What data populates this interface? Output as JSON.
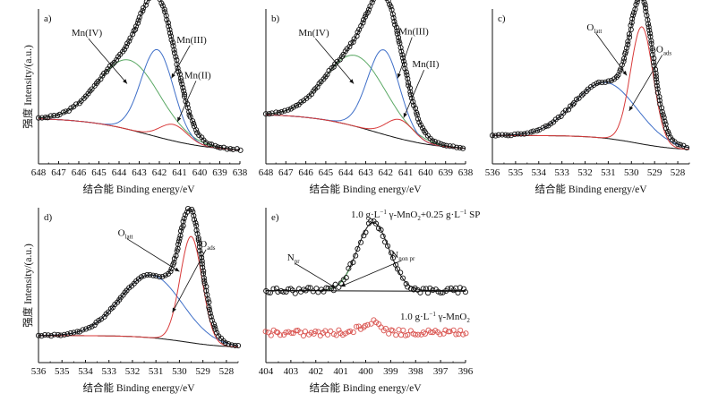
{
  "figure": {
    "y_axis_title": "强度 Intensity/(a.u.)",
    "x_axis_title": "结合能 Binding energy/eV"
  },
  "colors": {
    "data_markers": "#111111",
    "fit_envelope": "#111111",
    "background": "#111111",
    "mn4": "#5aa864",
    "mn3": "#3f6fc8",
    "mn2": "#d83a3a",
    "o_latt": "#d83a3a",
    "o_ads": "#3f6fc8",
    "sample_mno2": "#d9534f"
  },
  "chart_data": [
    {
      "id": "a",
      "panel_label": "a)",
      "type": "line",
      "xlabel": "结合能 Binding energy/eV",
      "ylabel": "强度 Intensity/(a.u.)",
      "xlim": [
        648,
        638
      ],
      "xticks": [
        "648",
        "647",
        "646",
        "645",
        "644",
        "643",
        "642",
        "641",
        "640",
        "639",
        "638"
      ],
      "ylim": [
        0,
        1
      ],
      "baseline": {
        "start": 0.27,
        "end": 0.02,
        "center": 642.5,
        "width": 1.6
      },
      "components": [
        {
          "name": "Mn(IV)",
          "color_key": "mn4",
          "center": 643.5,
          "fwhm": 3.6,
          "height": 0.51
        },
        {
          "name": "Mn(III)",
          "color_key": "mn3",
          "center": 642.1,
          "fwhm": 1.9,
          "height": 0.64
        },
        {
          "name": "Mn(II)",
          "color_key": "mn2",
          "center": 641.3,
          "fwhm": 1.6,
          "height": 0.12
        }
      ],
      "annotations": [
        {
          "text": "Mn(IV)",
          "x": 645.6,
          "y": 0.87,
          "arrow_to": [
            643.6,
            0.52
          ]
        },
        {
          "text": "Mn(III)",
          "x": 640.4,
          "y": 0.82,
          "arrow_to": [
            641.4,
            0.56
          ]
        },
        {
          "text": "Mn(II)",
          "x": 640.1,
          "y": 0.56,
          "arrow_to": [
            641.1,
            0.24
          ]
        }
      ]
    },
    {
      "id": "b",
      "panel_label": "b)",
      "type": "line",
      "xlabel": "结合能 Binding energy/eV",
      "ylabel": "",
      "xlim": [
        648,
        638
      ],
      "xticks": [
        "648",
        "647",
        "646",
        "645",
        "644",
        "643",
        "642",
        "641",
        "640",
        "639",
        "638"
      ],
      "ylim": [
        0,
        1
      ],
      "baseline": {
        "start": 0.3,
        "end": 0.03,
        "center": 642.5,
        "width": 1.6
      },
      "components": [
        {
          "name": "Mn(IV)",
          "color_key": "mn4",
          "center": 643.5,
          "fwhm": 3.6,
          "height": 0.52
        },
        {
          "name": "Mn(III)",
          "color_key": "mn3",
          "center": 642.1,
          "fwhm": 1.9,
          "height": 0.62
        },
        {
          "name": "Mn(II)",
          "color_key": "mn2",
          "center": 641.3,
          "fwhm": 1.6,
          "height": 0.14
        }
      ],
      "annotations": [
        {
          "text": "Mn(IV)",
          "x": 645.6,
          "y": 0.87,
          "arrow_to": [
            643.6,
            0.52
          ]
        },
        {
          "text": "Mn(III)",
          "x": 640.6,
          "y": 0.88,
          "arrow_to": [
            641.4,
            0.56
          ]
        },
        {
          "text": "Mn(II)",
          "x": 640.0,
          "y": 0.64,
          "arrow_to": [
            641.1,
            0.27
          ]
        }
      ]
    },
    {
      "id": "c",
      "panel_label": "c)",
      "type": "line",
      "xlabel": "结合能 Binding energy/eV",
      "ylabel": "",
      "xlim": [
        536,
        527.5
      ],
      "xticks": [
        "536",
        "535",
        "534",
        "533",
        "532",
        "531",
        "530",
        "529",
        "528"
      ],
      "ylim": [
        0,
        1
      ],
      "baseline": {
        "start": 0.14,
        "end": 0.03,
        "center": 529.8,
        "width": 0.9
      },
      "components": [
        {
          "name": "Oads",
          "color_key": "o_ads",
          "center": 531.1,
          "fwhm": 3.2,
          "height": 0.41
        },
        {
          "name": "Olatt",
          "color_key": "o_latt",
          "center": 529.55,
          "fwhm": 1.15,
          "height": 0.86
        }
      ],
      "annotations": [
        {
          "text": "O",
          "sub": "latt",
          "x": 531.6,
          "y": 0.91,
          "arrow_to": [
            530.2,
            0.58
          ]
        },
        {
          "text": "O",
          "sub": "ads",
          "x": 528.6,
          "y": 0.75,
          "arrow_to": [
            530.1,
            0.32
          ]
        }
      ]
    },
    {
      "id": "d",
      "panel_label": "d)",
      "type": "line",
      "xlabel": "结合能 Binding energy/eV",
      "ylabel": "强度 Intensity/(a.u.)",
      "xlim": [
        536,
        527.5
      ],
      "xticks": [
        "536",
        "535",
        "534",
        "533",
        "532",
        "531",
        "530",
        "529",
        "528"
      ],
      "ylim": [
        0,
        1
      ],
      "baseline": {
        "start": 0.13,
        "end": 0.04,
        "center": 529.8,
        "width": 0.9
      },
      "components": [
        {
          "name": "Oads",
          "color_key": "o_ads",
          "center": 531.2,
          "fwhm": 3.1,
          "height": 0.46
        },
        {
          "name": "Olatt",
          "color_key": "o_latt",
          "center": 529.5,
          "fwhm": 1.1,
          "height": 0.78
        }
      ],
      "annotations": [
        {
          "text": "O",
          "sub": "latt",
          "x": 532.3,
          "y": 0.86,
          "arrow_to": [
            530.0,
            0.6
          ]
        },
        {
          "text": "O",
          "sub": "ads",
          "x": 528.8,
          "y": 0.78,
          "arrow_to": [
            530.3,
            0.3
          ]
        }
      ]
    },
    {
      "id": "e",
      "panel_label": "e)",
      "type": "scatter",
      "xlabel": "结合能 Binding energy/eV",
      "ylabel": "",
      "xlim": [
        404,
        396
      ],
      "xticks": [
        "404",
        "403",
        "402",
        "401",
        "400",
        "399",
        "398",
        "397",
        "396"
      ],
      "ylim": [
        0,
        1
      ],
      "series": [
        {
          "name": "1.0 g·L⁻¹ γ-MnO₂+0.25 g·L⁻¹ SP",
          "color_key": "data_markers",
          "offset": 0.46,
          "peak_center": 399.7,
          "peak_fwhm": 1.5,
          "peak_height": 0.5,
          "fit": true
        },
        {
          "name": "1.0 g·L⁻¹ γ-MnO₂",
          "color_key": "sample_mno2",
          "offset": 0.15,
          "peak_center": 399.8,
          "peak_fwhm": 0.9,
          "peak_height": 0.08,
          "fit": false
        }
      ],
      "annotations": [
        {
          "text": "N",
          "sub": "pr",
          "x": 402.9,
          "y": 0.68,
          "arrow_to": [
            401.2,
            0.48
          ]
        },
        {
          "text": "N",
          "sub": "non pr",
          "x": 398.5,
          "y": 0.7,
          "arrow_to": [
            401.0,
            0.49
          ]
        }
      ],
      "labels": {
        "upper": {
          "pre": "1.0 g·L",
          "sup1": "−1",
          "mid": " γ-MnO",
          "sub1": "2",
          "mid2": "+0.25 g·L",
          "sup2": "−1",
          "post": " SP"
        },
        "lower": {
          "pre": "1.0 g·L",
          "sup1": "−1",
          "mid": " γ-MnO",
          "sub1": "2"
        }
      }
    }
  ]
}
